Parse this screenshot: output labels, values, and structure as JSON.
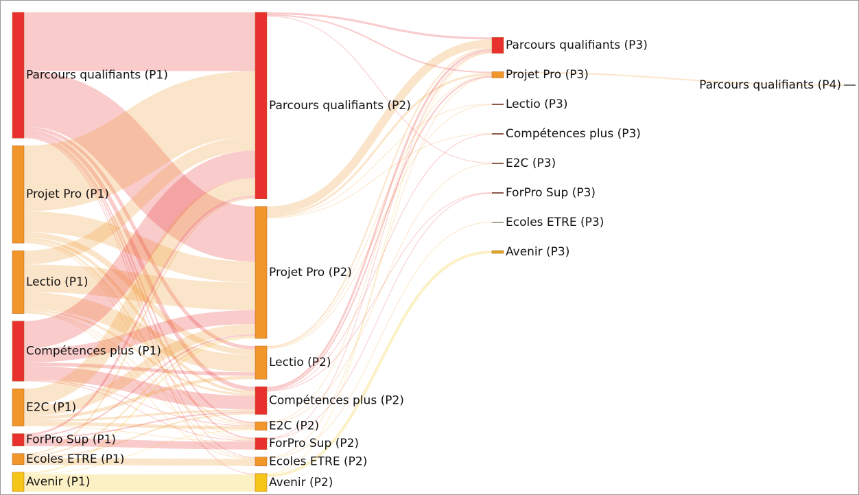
{
  "chart_data": {
    "type": "sankey",
    "nodes": [
      {
        "name": "Parcours qualifiants (P1)",
        "color": "#e8312f"
      },
      {
        "name": "Projet Pro (P1)",
        "color": "#f0962a"
      },
      {
        "name": "Lectio (P1)",
        "color": "#f0962a"
      },
      {
        "name": "Compétences plus (P1)",
        "color": "#e8312f"
      },
      {
        "name": "E2C (P1)",
        "color": "#f0962a"
      },
      {
        "name": "ForPro Sup (P1)",
        "color": "#e8312f"
      },
      {
        "name": "Ecoles ETRE (P1)",
        "color": "#f0962a"
      },
      {
        "name": "Avenir (P1)",
        "color": "#f5c518"
      },
      {
        "name": "Parcours qualifiants (P2)",
        "color": "#e8312f"
      },
      {
        "name": "Projet Pro (P2)",
        "color": "#f0962a"
      },
      {
        "name": "Lectio (P2)",
        "color": "#f0962a"
      },
      {
        "name": "Compétences plus (P2)",
        "color": "#e8312f"
      },
      {
        "name": "E2C (P2)",
        "color": "#f0962a"
      },
      {
        "name": "ForPro Sup (P2)",
        "color": "#e8312f"
      },
      {
        "name": "Ecoles ETRE (P2)",
        "color": "#f0962a"
      },
      {
        "name": "Avenir (P2)",
        "color": "#f5c518"
      },
      {
        "name": "Parcours qualifiants (P3)",
        "color": "#e8312f"
      },
      {
        "name": "Projet Pro (P3)",
        "color": "#f0962a"
      },
      {
        "name": "Lectio (P3)",
        "color": "#8b5a4a"
      },
      {
        "name": "Compétences plus (P3)",
        "color": "#8b5a4a"
      },
      {
        "name": "E2C (P3)",
        "color": "#8b5a4a"
      },
      {
        "name": "ForPro Sup (P3)",
        "color": "#8b5a4a"
      },
      {
        "name": "Ecoles ETRE (P3)",
        "color": "#8b8070"
      },
      {
        "name": "Avenir (P3)",
        "color": "#e0a820"
      },
      {
        "name": "Parcours qualifiants (P4)",
        "color": "#777777"
      }
    ],
    "links": [
      {
        "source": 0,
        "target": 8,
        "value": 85
      },
      {
        "source": 0,
        "target": 9,
        "value": 80
      },
      {
        "source": 0,
        "target": 10,
        "value": 5
      },
      {
        "source": 0,
        "target": 11,
        "value": 6
      },
      {
        "source": 0,
        "target": 12,
        "value": 2
      },
      {
        "source": 0,
        "target": 13,
        "value": 2
      },
      {
        "source": 0,
        "target": 14,
        "value": 1
      },
      {
        "source": 0,
        "target": 15,
        "value": 1
      },
      {
        "source": 1,
        "target": 8,
        "value": 95
      },
      {
        "source": 1,
        "target": 9,
        "value": 30
      },
      {
        "source": 1,
        "target": 10,
        "value": 8
      },
      {
        "source": 1,
        "target": 11,
        "value": 4
      },
      {
        "source": 1,
        "target": 12,
        "value": 2
      },
      {
        "source": 1,
        "target": 13,
        "value": 1
      },
      {
        "source": 1,
        "target": 14,
        "value": 1
      },
      {
        "source": 2,
        "target": 8,
        "value": 20
      },
      {
        "source": 2,
        "target": 9,
        "value": 40
      },
      {
        "source": 2,
        "target": 10,
        "value": 25
      },
      {
        "source": 2,
        "target": 11,
        "value": 3
      },
      {
        "source": 2,
        "target": 12,
        "value": 1
      },
      {
        "source": 2,
        "target": 13,
        "value": 1
      },
      {
        "source": 2,
        "target": 14,
        "value": 1
      },
      {
        "source": 3,
        "target": 8,
        "value": 40
      },
      {
        "source": 3,
        "target": 9,
        "value": 20
      },
      {
        "source": 3,
        "target": 10,
        "value": 5
      },
      {
        "source": 3,
        "target": 11,
        "value": 20
      },
      {
        "source": 3,
        "target": 12,
        "value": 1
      },
      {
        "source": 3,
        "target": 13,
        "value": 1
      },
      {
        "source": 4,
        "target": 8,
        "value": 25
      },
      {
        "source": 4,
        "target": 9,
        "value": 15
      },
      {
        "source": 4,
        "target": 10,
        "value": 5
      },
      {
        "source": 4,
        "target": 11,
        "value": 3
      },
      {
        "source": 4,
        "target": 12,
        "value": 5
      },
      {
        "source": 4,
        "target": 13,
        "value": 1
      },
      {
        "source": 5,
        "target": 8,
        "value": 3
      },
      {
        "source": 5,
        "target": 9,
        "value": 2
      },
      {
        "source": 5,
        "target": 11,
        "value": 2
      },
      {
        "source": 5,
        "target": 13,
        "value": 11
      },
      {
        "source": 6,
        "target": 8,
        "value": 2
      },
      {
        "source": 6,
        "target": 9,
        "value": 2
      },
      {
        "source": 6,
        "target": 11,
        "value": 2
      },
      {
        "source": 6,
        "target": 14,
        "value": 10
      },
      {
        "source": 7,
        "target": 9,
        "value": 2
      },
      {
        "source": 7,
        "target": 12,
        "value": 1
      },
      {
        "source": 7,
        "target": 15,
        "value": 25
      },
      {
        "source": 8,
        "target": 16,
        "value": 3
      },
      {
        "source": 8,
        "target": 17,
        "value": 2
      },
      {
        "source": 8,
        "target": 20,
        "value": 1
      },
      {
        "source": 9,
        "target": 16,
        "value": 12
      },
      {
        "source": 9,
        "target": 17,
        "value": 3
      },
      {
        "source": 9,
        "target": 18,
        "value": 1
      },
      {
        "source": 9,
        "target": 19,
        "value": 1
      },
      {
        "source": 10,
        "target": 16,
        "value": 2
      },
      {
        "source": 10,
        "target": 17,
        "value": 1
      },
      {
        "source": 10,
        "target": 18,
        "value": 1
      },
      {
        "source": 11,
        "target": 16,
        "value": 3
      },
      {
        "source": 11,
        "target": 17,
        "value": 2
      },
      {
        "source": 11,
        "target": 19,
        "value": 1
      },
      {
        "source": 11,
        "target": 21,
        "value": 1
      },
      {
        "source": 12,
        "target": 16,
        "value": 1
      },
      {
        "source": 12,
        "target": 20,
        "value": 1
      },
      {
        "source": 13,
        "target": 16,
        "value": 1
      },
      {
        "source": 13,
        "target": 21,
        "value": 1
      },
      {
        "source": 14,
        "target": 17,
        "value": 1
      },
      {
        "source": 14,
        "target": 22,
        "value": 1
      },
      {
        "source": 15,
        "target": 23,
        "value": 4
      },
      {
        "source": 15,
        "target": 16,
        "value": 1
      },
      {
        "source": 17,
        "target": 24,
        "value": 2
      }
    ]
  }
}
